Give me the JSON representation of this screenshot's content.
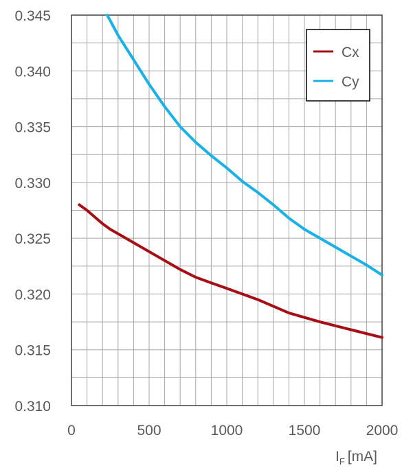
{
  "chart_data": {
    "type": "line",
    "xlabel": "I",
    "xlabel_sub": "F",
    "xlabel_unit": "[mA]",
    "ylabel": "",
    "xlim": [
      0,
      2000
    ],
    "ylim": [
      0.31,
      0.345
    ],
    "x_ticks": [
      "0",
      "500",
      "1000",
      "1500",
      "2000"
    ],
    "y_ticks": [
      "0.310",
      "0.315",
      "0.320",
      "0.325",
      "0.330",
      "0.335",
      "0.340",
      "0.345"
    ],
    "grid": true,
    "legend_position": "top-right",
    "series": [
      {
        "name": "Cx",
        "color": "#A50F15",
        "x": [
          50,
          100,
          150,
          200,
          250,
          300,
          400,
          500,
          600,
          700,
          800,
          900,
          1000,
          1200,
          1400,
          1600,
          1800,
          2000
        ],
        "y": [
          0.328,
          0.3275,
          0.3269,
          0.3263,
          0.3258,
          0.3254,
          0.3246,
          0.3238,
          0.323,
          0.3222,
          0.3215,
          0.321,
          0.3205,
          0.3195,
          0.3183,
          0.3175,
          0.3168,
          0.3161
        ]
      },
      {
        "name": "Cy",
        "color": "#1AB2E6",
        "x": [
          230,
          250,
          300,
          400,
          500,
          600,
          700,
          800,
          900,
          1000,
          1100,
          1200,
          1300,
          1400,
          1500,
          1600,
          1700,
          1800,
          1900,
          2000
        ],
        "y": [
          0.345,
          0.3445,
          0.3432,
          0.341,
          0.3388,
          0.3368,
          0.335,
          0.3336,
          0.3324,
          0.3313,
          0.3301,
          0.3291,
          0.328,
          0.3268,
          0.3258,
          0.325,
          0.3242,
          0.3234,
          0.3226,
          0.3217
        ]
      }
    ]
  }
}
